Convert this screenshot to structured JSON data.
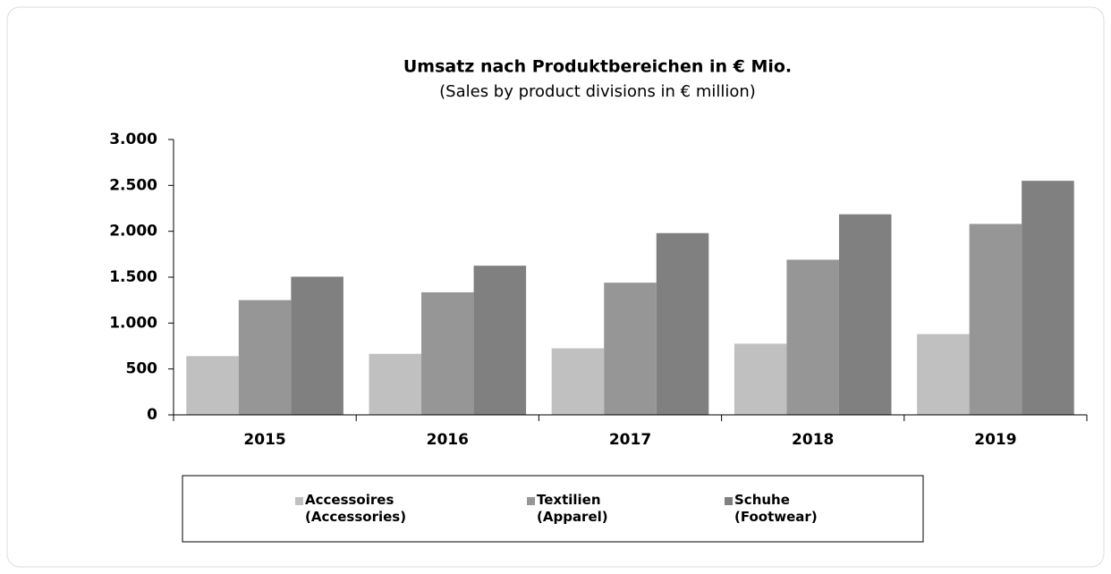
{
  "chart_data": {
    "type": "bar",
    "title": "Umsatz nach Produktbereichen in € Mio.",
    "subtitle": "(Sales by product divisions in € million)",
    "categories": [
      "2015",
      "2016",
      "2017",
      "2018",
      "2019"
    ],
    "series": [
      {
        "name": "Accessoires\n(Accessories)",
        "color": "#c0c0c0",
        "values": [
          640,
          665,
          725,
          775,
          880
        ]
      },
      {
        "name": "Textilien\n(Apparel)",
        "color": "#969696",
        "values": [
          1250,
          1335,
          1440,
          1690,
          2080
        ]
      },
      {
        "name": "Schuhe\n(Footwear)",
        "color": "#808080",
        "values": [
          1505,
          1625,
          1980,
          2185,
          2550
        ]
      }
    ],
    "ylim": [
      0,
      3000
    ],
    "yticks": [
      0,
      500,
      {
        "value": 1000,
        "label": "1.000"
      },
      {
        "value": 1500,
        "label": "1.500"
      },
      {
        "value": 2000,
        "label": "2.000"
      },
      {
        "value": 2500,
        "label": "2.500"
      },
      {
        "value": 3000,
        "label": "3.000"
      }
    ],
    "grid": false,
    "legend": "bottom"
  }
}
